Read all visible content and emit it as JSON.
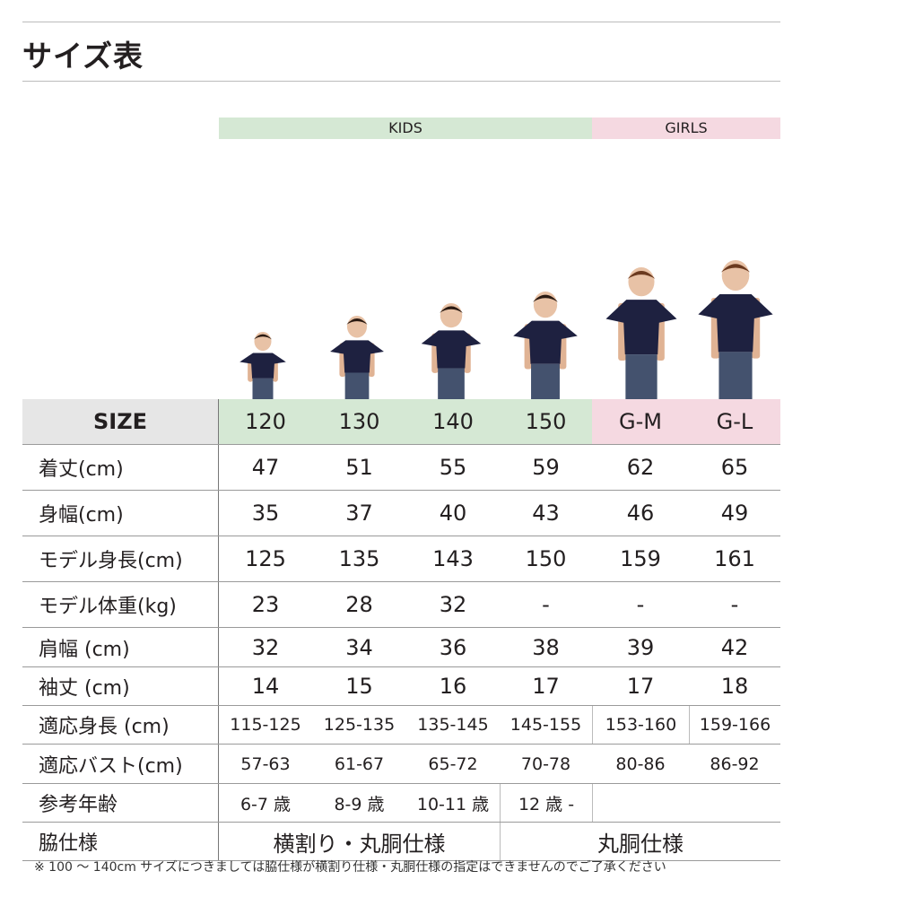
{
  "title": "サイズ表",
  "groups": {
    "kids": "KIDS",
    "girls": "GIRLS"
  },
  "colors": {
    "kids": "#d5e8d4",
    "girls": "#f5d9e1",
    "header_label": "#e6e6e6",
    "shirt": "#1e2140",
    "jeans": "#44526e"
  },
  "table": {
    "header": {
      "label": "SIZE",
      "sizes": [
        "120",
        "130",
        "140",
        "150",
        "G-M",
        "G-L"
      ]
    },
    "rows": [
      {
        "label": "着丈(cm)",
        "cells": [
          "47",
          "51",
          "55",
          "59",
          "62",
          "65"
        ]
      },
      {
        "label": "身幅(cm)",
        "cells": [
          "35",
          "37",
          "40",
          "43",
          "46",
          "49"
        ]
      },
      {
        "label": "モデル身長(cm)",
        "cells": [
          "125",
          "135",
          "143",
          "150",
          "159",
          "161"
        ]
      },
      {
        "label": "モデル体重(kg)",
        "cells": [
          "23",
          "28",
          "32",
          "-",
          "-",
          "-"
        ]
      },
      {
        "label": "肩幅 (cm)",
        "cells": [
          "32",
          "34",
          "36",
          "38",
          "39",
          "42"
        ]
      },
      {
        "label": "袖丈 (cm)",
        "cells": [
          "14",
          "15",
          "16",
          "17",
          "17",
          "18"
        ]
      },
      {
        "label": "適応身長 (cm)",
        "cells": [
          "115-125",
          "125-135",
          "135-145",
          "145-155",
          "153-160",
          "159-166"
        ]
      },
      {
        "label": "適応バスト(cm)",
        "cells": [
          "57-63",
          "61-67",
          "65-72",
          "70-78",
          "80-86",
          "86-92"
        ]
      },
      {
        "label": "参考年齢",
        "cells": [
          "6-7 歳",
          "8-9 歳",
          "10-11 歳",
          "12 歳 -",
          ""
        ]
      },
      {
        "label": "脇仕様",
        "cells": [
          "横割り・丸胴仕様",
          "丸胴仕様"
        ]
      }
    ]
  },
  "note": "※ 100 ～ 140cm サイズにつきましては脇仕様が横割り仕様・丸胴仕様の指定はできませんのでご了承ください"
}
